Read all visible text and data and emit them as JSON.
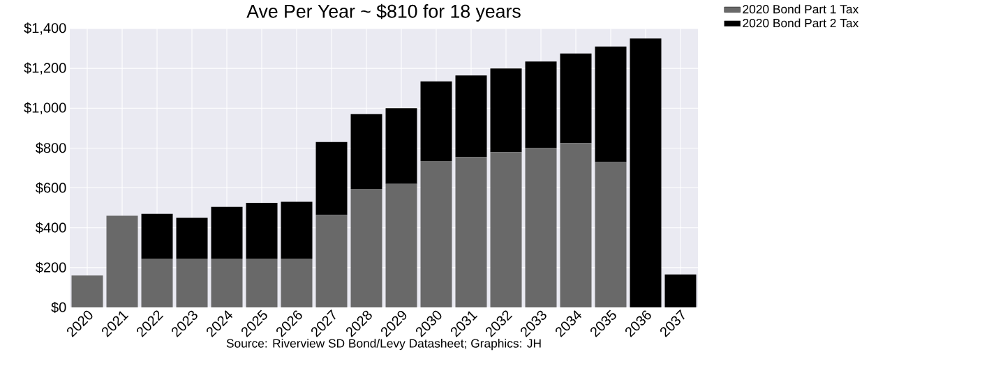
{
  "chart_data": {
    "type": "bar",
    "title": "Ave Per Year ~ $810 for 18 years",
    "stacked": true,
    "categories": [
      "2020",
      "2021",
      "2022",
      "2023",
      "2024",
      "2025",
      "2026",
      "2027",
      "2028",
      "2029",
      "2030",
      "2031",
      "2032",
      "2033",
      "2034",
      "2035",
      "2036",
      "2037"
    ],
    "series": [
      {
        "name": "2020 Bond Part 1 Tax",
        "color": "#696969",
        "values": [
          160,
          460,
          245,
          245,
          245,
          245,
          245,
          465,
          595,
          620,
          735,
          755,
          780,
          800,
          825,
          730,
          null,
          null
        ]
      },
      {
        "name": "2020 Bond Part 2 Tax",
        "color": "#000000",
        "values": [
          null,
          null,
          225,
          205,
          260,
          280,
          285,
          365,
          375,
          380,
          400,
          410,
          420,
          435,
          450,
          580,
          1350,
          165
        ]
      }
    ],
    "ylim": [
      0,
      1400
    ],
    "yticks": [
      {
        "value": 0,
        "label": "$0"
      },
      {
        "value": 200,
        "label": "$200"
      },
      {
        "value": 400,
        "label": "$400"
      },
      {
        "value": 600,
        "label": "$600"
      },
      {
        "value": 800,
        "label": "$800"
      },
      {
        "value": 1000,
        "label": "$1,000"
      },
      {
        "value": 1200,
        "label": "$1,200"
      },
      {
        "value": 1400,
        "label": "$1,400"
      }
    ],
    "grid": true,
    "legend": "top right",
    "annotations": [
      "Source: Riverview SD Bond/Levy Datasheet; Graphics: JH"
    ]
  }
}
